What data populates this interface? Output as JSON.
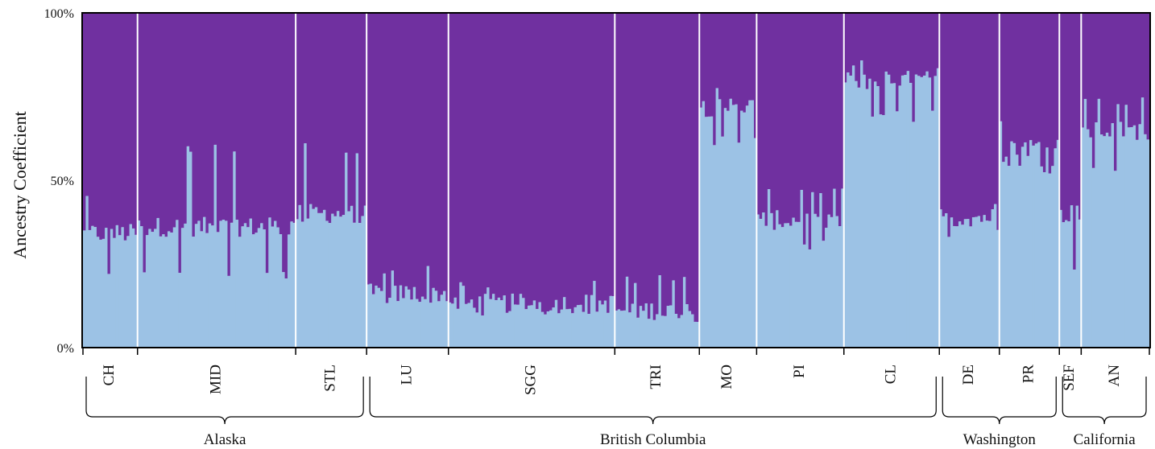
{
  "chart_data": {
    "type": "bar",
    "subtype": "stacked-100-structure-plot",
    "ylabel": "Ancestry Coefficient",
    "ylim": [
      0,
      100
    ],
    "yticks": [
      "0%",
      "50%",
      "100%"
    ],
    "grid": false,
    "legend": "none",
    "series": [
      {
        "color": "#9cc2e5",
        "component": "bottom"
      },
      {
        "color": "#7030a0",
        "component": "top"
      }
    ],
    "populations": [
      {
        "label": "CH",
        "region": "Alaska",
        "n": 20,
        "base": 34,
        "lo": 20,
        "hi": 48
      },
      {
        "label": "MID",
        "region": "Alaska",
        "n": 58,
        "base": 36,
        "lo": 20,
        "hi": 61
      },
      {
        "label": "STL",
        "region": "Alaska",
        "n": 26,
        "base": 40,
        "lo": 28,
        "hi": 62
      },
      {
        "label": "LU",
        "region": "British Columbia",
        "n": 30,
        "base": 16,
        "lo": 13,
        "hi": 25
      },
      {
        "label": "SGG",
        "region": "British Columbia",
        "n": 61,
        "base": 13,
        "lo": 9,
        "hi": 21
      },
      {
        "label": "TRI",
        "region": "British Columbia",
        "n": 31,
        "base": 11,
        "lo": 6,
        "hi": 23
      },
      {
        "label": "MO",
        "region": "British Columbia",
        "n": 21,
        "base": 72,
        "lo": 60,
        "hi": 80
      },
      {
        "label": "PI",
        "region": "British Columbia",
        "n": 32,
        "base": 38,
        "lo": 28,
        "hi": 50
      },
      {
        "label": "CL",
        "region": "British Columbia",
        "n": 35,
        "base": 80,
        "lo": 67,
        "hi": 87
      },
      {
        "label": "DE",
        "region": "Washington",
        "n": 22,
        "base": 39,
        "lo": 33,
        "hi": 45
      },
      {
        "label": "PR",
        "region": "Washington",
        "n": 22,
        "base": 60,
        "lo": 52,
        "hi": 68
      },
      {
        "label": "SEF",
        "region": "California",
        "n": 8,
        "base": 40,
        "lo": 22,
        "hi": 50
      },
      {
        "label": "AN",
        "region": "California",
        "n": 25,
        "base": 65,
        "lo": 51,
        "hi": 76
      }
    ],
    "regions": [
      "Alaska",
      "British Columbia",
      "Washington",
      "California"
    ]
  }
}
